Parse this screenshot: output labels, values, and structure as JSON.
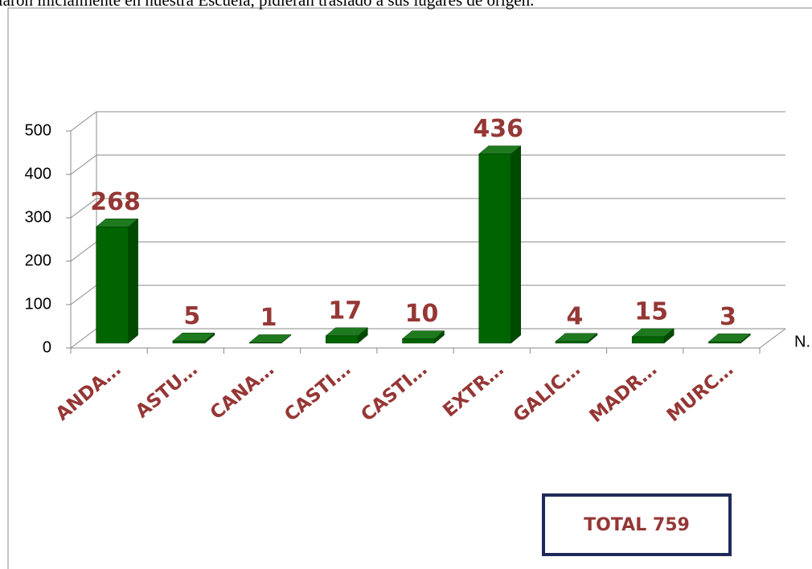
{
  "caption": "ilaron inicialmente en nuestra Escuela, pidieran traslado a sus lugares de origen.",
  "chart_data": {
    "type": "bar3d",
    "categories": [
      "ANDA…",
      "ASTU…",
      "CANA…",
      "CASTI…",
      "CASTI…",
      "EXTR…",
      "GALIC…",
      "MADR…",
      "MURC…"
    ],
    "series": [
      {
        "name": "N.",
        "color": "#006400",
        "values": [
          268,
          5,
          1,
          17,
          10,
          436,
          4,
          15,
          3
        ]
      }
    ],
    "ylim": [
      0,
      500
    ],
    "yticks": [
      0,
      100,
      200,
      300,
      400,
      500
    ],
    "grid": true,
    "annotation": "TOTAL 759"
  }
}
